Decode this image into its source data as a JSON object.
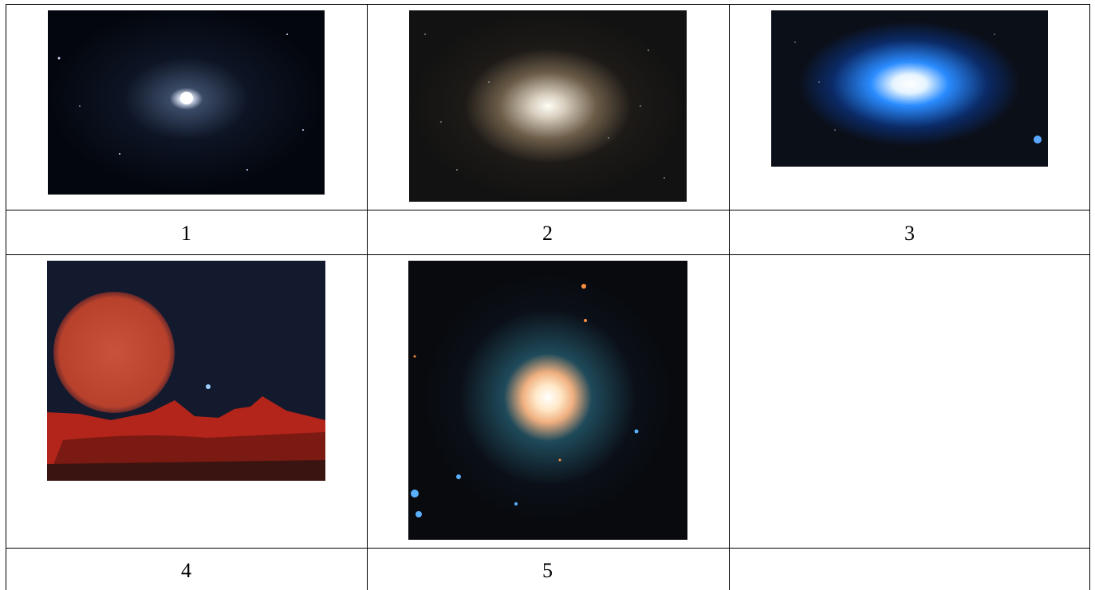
{
  "table": {
    "rows": [
      [
        "1",
        "2",
        "3"
      ],
      [
        "4",
        "5"
      ]
    ]
  }
}
